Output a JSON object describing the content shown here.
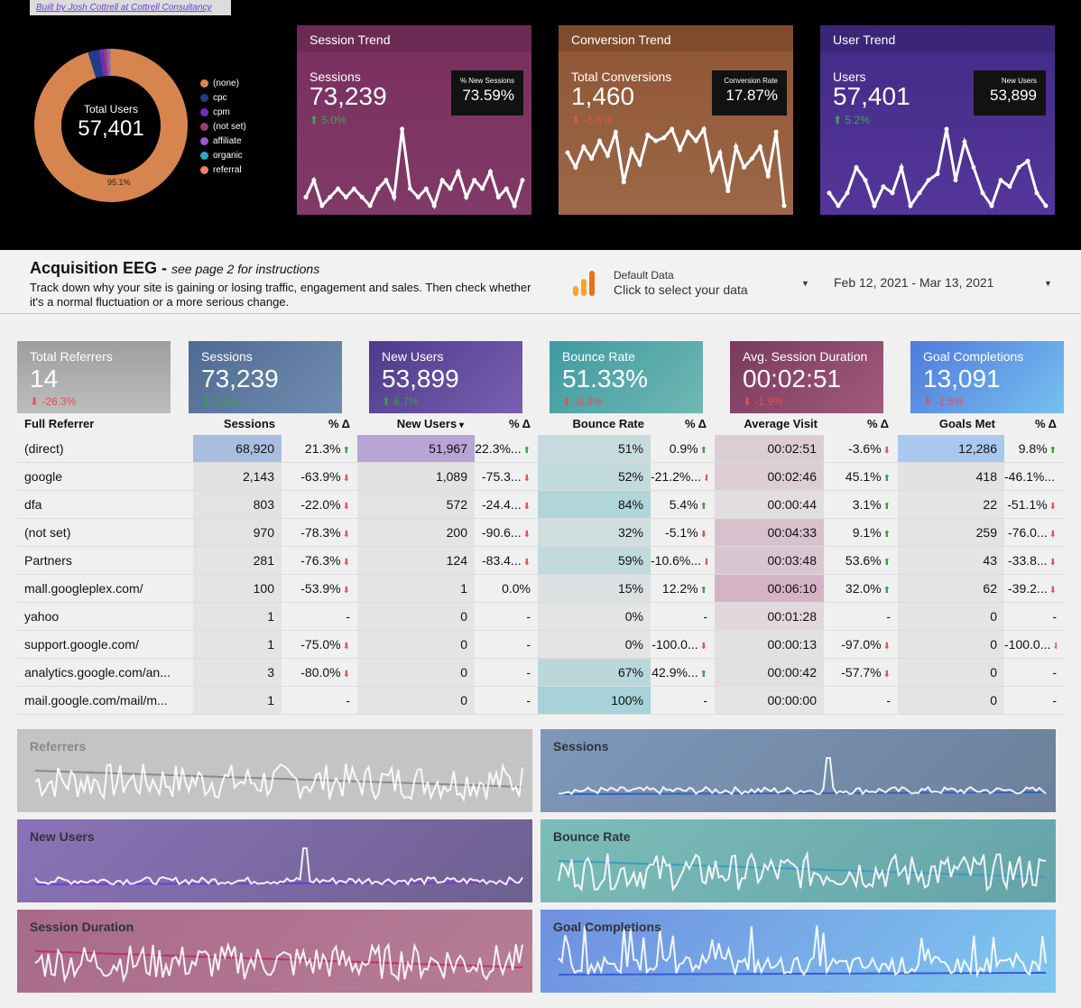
{
  "credit": "Built by Josh Cottrell at Cottrell Consultancy",
  "donut": {
    "label": "Total Users",
    "value": "57,401",
    "percent_label": "95.1%",
    "segments": [
      {
        "name": "(none)",
        "value": 95.1,
        "color": "#d7854f"
      },
      {
        "name": "cpc",
        "value": 2.3,
        "color": "#1f3d8c"
      },
      {
        "name": "cpm",
        "value": 0.9,
        "color": "#6a2fc0"
      },
      {
        "name": "(not set)",
        "value": 0.7,
        "color": "#9d3c6a"
      },
      {
        "name": "affiliate",
        "value": 0.5,
        "color": "#a056d1"
      },
      {
        "name": "organic",
        "value": 0.3,
        "color": "#2ea6c4"
      },
      {
        "name": "referral",
        "value": 0.2,
        "color": "#f07c6c"
      }
    ]
  },
  "trends": {
    "sessions": {
      "title": "Session Trend",
      "label": "Sessions",
      "value": "73,239",
      "delta": "5.0%",
      "sub_label": "% New Sessions",
      "sub_value": "73.59%",
      "points": [
        60,
        62,
        59,
        60,
        61,
        60,
        61,
        60,
        59,
        61,
        62,
        60,
        68,
        61,
        60,
        61,
        59,
        62,
        61,
        63,
        60,
        62,
        61,
        63,
        60,
        61,
        59,
        62
      ]
    },
    "conversions": {
      "title": "Conversion Trend",
      "label": "Total Conversions",
      "value": "1,460",
      "delta": "-1.6%",
      "sub_label": "Conversion Rate",
      "sub_value": "17.87%",
      "points": [
        48,
        43,
        50,
        46,
        52,
        47,
        55,
        38,
        49,
        44,
        54,
        52,
        53,
        56,
        49,
        55,
        52,
        56,
        42,
        48,
        35,
        50,
        43,
        46,
        50,
        40,
        55,
        30
      ]
    },
    "users": {
      "title": "User Trend",
      "label": "Users",
      "value": "57,401",
      "delta": "5.2%",
      "sub_label": "New Users",
      "sub_value": "53,899",
      "points": [
        60,
        58,
        60,
        64,
        62,
        58,
        61,
        60,
        64,
        58,
        60,
        62,
        63,
        70,
        62,
        68,
        64,
        60,
        58,
        62,
        61,
        64,
        65,
        60,
        58
      ]
    }
  },
  "header": {
    "title": "Acquisition EEG",
    "subtitle": "see page 2 for instructions",
    "description": "Track down why your site is gaining or losing traffic, engagement and sales. Then check whether it's a normal fluctuation or a more serious change.",
    "data_source_sub": "Default Data",
    "data_source_main": "Click to select your data",
    "date_range": "Feb 12, 2021 - Mar 13, 2021"
  },
  "kpis": [
    {
      "label": "Total Referrers",
      "value": "14",
      "delta": "-26.3%",
      "dir": "down",
      "bg": "linear-gradient(#9e9e9e,#bdbdbd)",
      "dcolor": "#e25151"
    },
    {
      "label": "Sessions",
      "value": "73,239",
      "delta": "5.0%",
      "dir": "up",
      "bg": "linear-gradient(135deg,#4f6a92,#6f8db0)",
      "dcolor": "#3f9a45"
    },
    {
      "label": "New Users",
      "value": "53,899",
      "delta": "6.7%",
      "dir": "up",
      "bg": "linear-gradient(135deg,#4d3b8c,#7a5fb0)",
      "dcolor": "#3f9a45"
    },
    {
      "label": "Bounce Rate",
      "value": "51.33%",
      "delta": "-0.4%",
      "dir": "down",
      "bg": "linear-gradient(135deg,#3f9aa2,#70b8b3)",
      "dcolor": "#e25151"
    },
    {
      "label": "Avg. Session Duration",
      "value": "00:02:51",
      "delta": "-1.9%",
      "dir": "down",
      "bg": "linear-gradient(135deg,#7a3a5c,#a05a7c)",
      "dcolor": "#e25151"
    },
    {
      "label": "Goal Completions",
      "value": "13,091",
      "delta": "-1.5%",
      "dir": "down",
      "bg": "linear-gradient(135deg,#4f7adc,#77c1f0)",
      "dcolor": "#e25151"
    }
  ],
  "table": {
    "headers": [
      "Full Referrer",
      "Sessions",
      "% Δ",
      "New Users",
      "% Δ",
      "Bounce Rate",
      "% Δ",
      "Average Visit",
      "% Δ",
      "Goals Met",
      "% Δ"
    ],
    "rows": [
      {
        "ref": "(direct)",
        "s": "68,920",
        "sd": "21.3%",
        "sdir": "up",
        "n": "51,967",
        "nd": "22.3%...",
        "ndir": "up",
        "b": "51%",
        "bd": "0.9%",
        "bdir": "up",
        "a": "00:02:51",
        "ad": "-3.6%",
        "adir": "down",
        "g": "12,286",
        "gd": "9.8%",
        "gdir": "up"
      },
      {
        "ref": "google",
        "s": "2,143",
        "sd": "-63.9%",
        "sdir": "down",
        "n": "1,089",
        "nd": "-75.3...",
        "ndir": "down",
        "b": "52%",
        "bd": "-21.2%...",
        "bdir": "down",
        "a": "00:02:46",
        "ad": "45.1%",
        "adir": "up",
        "g": "418",
        "gd": "-46.1%...",
        "gdir": "down"
      },
      {
        "ref": "dfa",
        "s": "803",
        "sd": "-22.0%",
        "sdir": "down",
        "n": "572",
        "nd": "-24.4...",
        "ndir": "down",
        "b": "84%",
        "bd": "5.4%",
        "bdir": "up",
        "a": "00:00:44",
        "ad": "3.1%",
        "adir": "up",
        "g": "22",
        "gd": "-51.1%",
        "gdir": "down"
      },
      {
        "ref": "(not set)",
        "s": "970",
        "sd": "-78.3%",
        "sdir": "down",
        "n": "200",
        "nd": "-90.6...",
        "ndir": "down",
        "b": "32%",
        "bd": "-5.1%",
        "bdir": "down",
        "a": "00:04:33",
        "ad": "9.1%",
        "adir": "up",
        "g": "259",
        "gd": "-76.0...",
        "gdir": "down"
      },
      {
        "ref": "Partners",
        "s": "281",
        "sd": "-76.3%",
        "sdir": "down",
        "n": "124",
        "nd": "-83.4...",
        "ndir": "down",
        "b": "59%",
        "bd": "-10.6%...",
        "bdir": "down",
        "a": "00:03:48",
        "ad": "53.6%",
        "adir": "up",
        "g": "43",
        "gd": "-33.8...",
        "gdir": "down"
      },
      {
        "ref": "mall.googleplex.com/",
        "s": "100",
        "sd": "-53.9%",
        "sdir": "down",
        "n": "1",
        "nd": "0.0%",
        "ndir": "",
        "b": "15%",
        "bd": "12.2%",
        "bdir": "up",
        "a": "00:06:10",
        "ad": "32.0%",
        "adir": "up",
        "g": "62",
        "gd": "-39.2...",
        "gdir": "down"
      },
      {
        "ref": "yahoo",
        "s": "1",
        "sd": "-",
        "sdir": "",
        "n": "0",
        "nd": "-",
        "ndir": "",
        "b": "0%",
        "bd": "-",
        "bdir": "",
        "a": "00:01:28",
        "ad": "-",
        "adir": "",
        "g": "0",
        "gd": "-",
        "gdir": ""
      },
      {
        "ref": "support.google.com/",
        "s": "1",
        "sd": "-75.0%",
        "sdir": "down",
        "n": "0",
        "nd": "-",
        "ndir": "",
        "b": "0%",
        "bd": "-100.0...",
        "bdir": "down",
        "a": "00:00:13",
        "ad": "-97.0%",
        "adir": "down",
        "g": "0",
        "gd": "-100.0...",
        "gdir": "down"
      },
      {
        "ref": "analytics.google.com/an...",
        "s": "3",
        "sd": "-80.0%",
        "sdir": "down",
        "n": "0",
        "nd": "-",
        "ndir": "",
        "b": "67%",
        "bd": "42.9%...",
        "bdir": "up",
        "a": "00:00:42",
        "ad": "-57.7%",
        "adir": "down",
        "g": "0",
        "gd": "-",
        "gdir": ""
      },
      {
        "ref": "mail.google.com/mail/m...",
        "s": "1",
        "sd": "-",
        "sdir": "",
        "n": "0",
        "nd": "-",
        "ndir": "",
        "b": "100%",
        "bd": "-",
        "bdir": "",
        "a": "00:00:00",
        "ad": "-",
        "adir": "",
        "g": "0",
        "gd": "-",
        "gdir": ""
      }
    ],
    "heat": {
      "s": [
        1.0,
        0.03,
        0.01,
        0.014,
        0.004,
        0.0015,
        0,
        0,
        0,
        0
      ],
      "n": [
        1.0,
        0.02,
        0.01,
        0.004,
        0.002,
        0,
        0,
        0,
        0,
        0
      ],
      "b": [
        0.51,
        0.52,
        0.84,
        0.32,
        0.59,
        0.15,
        0,
        0,
        0.67,
        1.0
      ],
      "a": [
        0.46,
        0.45,
        0.12,
        0.74,
        0.62,
        1.0,
        0.24,
        0.04,
        0.11,
        0
      ],
      "g": [
        1.0,
        0.03,
        0,
        0.02,
        0,
        0,
        0,
        0,
        0,
        0
      ]
    },
    "heat_colors": {
      "s": "#a9bedf",
      "n": "#b9a4d6",
      "b": "#a6d2d8",
      "a": "#d4b3c4",
      "g": "#a9c8f0"
    }
  },
  "sparks": [
    {
      "label": "Referrers",
      "bg": "#c4c4c4",
      "lcolor": "#888888",
      "trend": "#8a8a8a"
    },
    {
      "label": "Sessions",
      "bg": "linear-gradient(135deg,#7e98ba,#6c809a)",
      "lcolor": "#333333",
      "trend": "#2e62c8"
    },
    {
      "label": "New Users",
      "bg": "linear-gradient(135deg,#8a73b8,#6d6090)",
      "lcolor": "#333333",
      "trend": "#7a3bd0"
    },
    {
      "label": "Bounce Rate",
      "bg": "linear-gradient(135deg,#7cbdb8,#64a3a9)",
      "lcolor": "#333333",
      "trend": "#3a9cc8"
    },
    {
      "label": "Session Duration",
      "bg": "linear-gradient(135deg,#a86a8a,#b77d95)",
      "lcolor": "#333333",
      "trend": "#c0306a"
    },
    {
      "label": "Goal Completions",
      "bg": "linear-gradient(135deg,#6f8fe0,#7fc8f0)",
      "lcolor": "#333333",
      "trend": "#3a5ad8"
    }
  ]
}
